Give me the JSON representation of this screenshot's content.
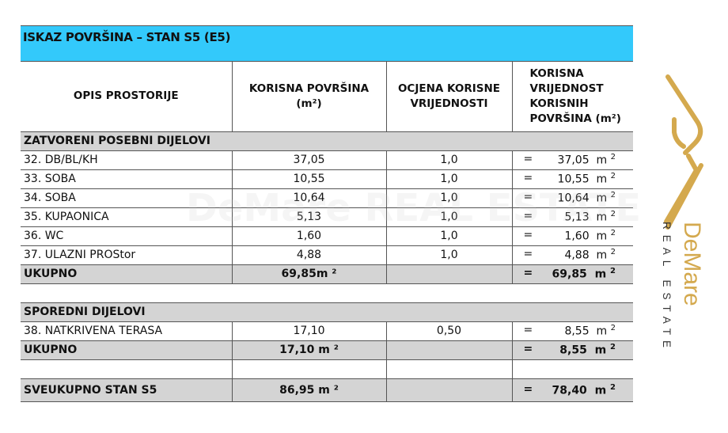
{
  "title": "ISKAZ POVRŠINA – STAN S5 (E5)",
  "headers": [
    "OPIS PROSTORIJE",
    "KORISNA POVRŠINA (m²)",
    "OCJENA KORISNE VRIJEDNOSTI",
    "KORISNA VRIJEDNOST KORISNIH POVRŠINA (m²)"
  ],
  "rows": [
    {
      "type": "section",
      "label": "ZATVORENI POSEBNI DIJELOVI"
    },
    {
      "type": "item",
      "label": "32. DB/BL/KH",
      "area": "37,05",
      "factor": "1,0",
      "eq": "=",
      "value": "37,05",
      "unit": "m",
      "sup": "2"
    },
    {
      "type": "item",
      "label": "33. SOBA",
      "area": "10,55",
      "factor": "1,0",
      "eq": "=",
      "value": "10,55",
      "unit": "m",
      "sup": "2"
    },
    {
      "type": "item",
      "label": "34. SOBA",
      "area": "10,64",
      "factor": "1,0",
      "eq": "=",
      "value": "10,64",
      "unit": "m",
      "sup": "2"
    },
    {
      "type": "item",
      "label": "35. KUPAONICA",
      "area": "5,13",
      "factor": "1,0",
      "eq": "=",
      "value": "5,13",
      "unit": "m",
      "sup": "2"
    },
    {
      "type": "item",
      "label": "36. WC",
      "area": "1,60",
      "factor": "1,0",
      "eq": "=",
      "value": "1,60",
      "unit": "m",
      "sup": "2"
    },
    {
      "type": "item",
      "label": "37. ULAZNI PROStor",
      "area": "4,88",
      "factor": "1,0",
      "eq": "=",
      "value": "4,88",
      "unit": "m",
      "sup": "2"
    },
    {
      "type": "sum",
      "label": "UKUPNO",
      "area": "69,85m ²",
      "factor": "",
      "eq": "=",
      "value": "69,85",
      "unit": "m",
      "sup": "2"
    },
    {
      "type": "blank"
    },
    {
      "type": "section",
      "label": "SPOREDNI  DIJELOVI"
    },
    {
      "type": "item",
      "label": "38. NATKRIVENA TERASA",
      "area": "17,10",
      "factor": "0,50",
      "eq": "=",
      "value": "8,55",
      "unit": "m",
      "sup": "2"
    },
    {
      "type": "sum",
      "label": "UKUPNO",
      "area": "17,10 m ²",
      "factor": "",
      "eq": "=",
      "value": "8,55",
      "unit": "m",
      "sup": "2"
    },
    {
      "type": "blank2"
    },
    {
      "type": "sum",
      "big": true,
      "label": "SVEUKUPNO STAN S5",
      "area": "86,95 m ²",
      "factor": "",
      "eq": "=",
      "value": "78,40",
      "unit": "m",
      "sup": "2"
    }
  ],
  "logo": {
    "brand": "DeMare",
    "sub": "REAL ESTATE",
    "color": "#d4a94e"
  },
  "watermark": "DeMare REAL ESTATE",
  "colors": {
    "title_bg": "#33c9fb",
    "section_bg": "#d4d4d4"
  }
}
